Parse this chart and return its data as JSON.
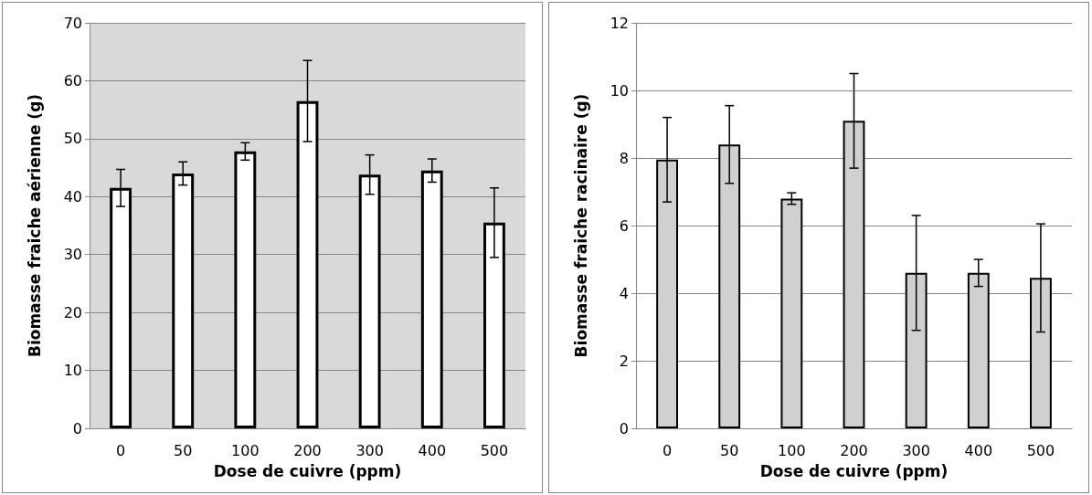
{
  "chart_data": [
    {
      "type": "bar",
      "xlabel": "Dose de cuivre (ppm)",
      "ylabel": "Biomasse fraiche aérienne (g)",
      "categories": [
        "0",
        "50",
        "100",
        "200",
        "300",
        "400",
        "500"
      ],
      "series": [
        {
          "color": "#ffffff",
          "values": [
            41.5,
            44,
            47.8,
            56.5,
            43.8,
            44.5,
            35.5
          ],
          "errors": [
            3.2,
            2,
            1.5,
            7,
            3.4,
            2,
            6
          ]
        }
      ],
      "ylim": [
        0,
        70
      ],
      "yticks": [
        0,
        10,
        20,
        30,
        40,
        50,
        60,
        70
      ],
      "grid": "y"
    },
    {
      "type": "bar",
      "xlabel": "Dose de cuivre (ppm)",
      "ylabel": "Biomasse fraiche racinaire (g)",
      "categories": [
        "0",
        "50",
        "100",
        "200",
        "300",
        "400",
        "500"
      ],
      "series": [
        {
          "color": "#d0d0d0",
          "values": [
            7.95,
            8.4,
            6.8,
            9.1,
            4.6,
            4.6,
            4.45
          ],
          "errors": [
            1.25,
            1.15,
            0.17,
            1.4,
            1.7,
            0.4,
            1.6
          ]
        }
      ],
      "ylim": [
        0,
        12
      ],
      "yticks": [
        0,
        2,
        4,
        6,
        8,
        10,
        12
      ],
      "grid": "y"
    }
  ]
}
